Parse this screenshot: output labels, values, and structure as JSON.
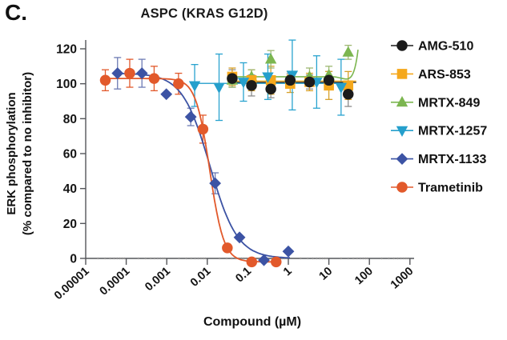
{
  "panel_label": "C.",
  "title": "ASPC (KRAS G12D)",
  "xlabel": "Compound (µM)",
  "ylabel_line1": "ERK phosphorylation",
  "ylabel_line2": "(% compared to no inhibitor)",
  "axes": {
    "x_ticks": [
      "0.00001",
      "0.0001",
      "0.001",
      "0.01",
      "0.1",
      "1",
      "10",
      "100",
      "1000"
    ],
    "x_log_min": -5,
    "x_log_max": 3,
    "y_ticks": [
      0,
      20,
      40,
      60,
      80,
      100,
      120
    ],
    "y_min": 0,
    "y_max": 120,
    "axis_color": "#54565a",
    "minor_tick_color": "#8e8e8e"
  },
  "chart_data": {
    "type": "scatter",
    "subtype": "dose-response curves, log x-axis",
    "title": "ASPC (KRAS G12D)",
    "xlabel": "Compound (µM)",
    "ylabel": "ERK phosphorylation (% compared to no inhibitor)",
    "xlim_log10": [
      -5,
      3
    ],
    "ylim": [
      0,
      120
    ],
    "series": [
      {
        "name": "AMG-510",
        "marker": "circle",
        "color": "#1b1b1b",
        "err_color": "#8c8c8c",
        "x": [
          0.0412,
          0.1235,
          0.37,
          1.111,
          3.333,
          10,
          30
        ],
        "y": [
          103,
          99,
          97,
          102,
          101,
          102,
          94
        ],
        "err": [
          5,
          6,
          5,
          4,
          4,
          5,
          7
        ],
        "fit": {
          "type": "flat",
          "level": 100.8
        }
      },
      {
        "name": "ARS-853",
        "marker": "square",
        "color": "#F5A81C",
        "err_color": "#d6a02a",
        "x": [
          0.0412,
          0.1235,
          0.37,
          1.111,
          3.333,
          10,
          30
        ],
        "y": [
          104,
          102,
          102,
          100,
          101,
          99,
          99
        ],
        "err": [
          5,
          6,
          8,
          5,
          5,
          8,
          8
        ],
        "fit": {
          "type": "flat",
          "level": 101.5
        }
      },
      {
        "name": "MRTX-849",
        "marker": "triangle-up",
        "color": "#7CB650",
        "err_color": "#9eb873",
        "x": [
          0.0412,
          0.1235,
          0.37,
          1.111,
          3.333,
          10,
          30
        ],
        "y": [
          102,
          104,
          114,
          103,
          104,
          105,
          118
        ],
        "err": [
          4,
          4,
          5,
          4,
          5,
          5,
          4
        ],
        "fit": {
          "type": "flat-rise",
          "level": 104,
          "rise_to": 119.5
        }
      },
      {
        "name": "MRTX-1257",
        "marker": "triangle-down",
        "color": "#259FCC",
        "err_color": "#29a3cf",
        "x": [
          0.00488,
          0.01953,
          0.07813,
          0.3125,
          1.25,
          5,
          20
        ],
        "y": [
          99,
          98,
          101,
          104,
          105,
          101,
          98
        ],
        "err": [
          12,
          19,
          11,
          13,
          20,
          15,
          16
        ],
        "fit": {
          "type": "flat",
          "level": 100.2
        }
      },
      {
        "name": "MRTX-1133",
        "marker": "diamond",
        "color": "#3C53A4",
        "err_color": "#6d7bb4",
        "x": [
          6.1e-05,
          0.000244,
          0.000977,
          0.00391,
          0.01563,
          0.0625,
          0.25,
          1
        ],
        "y": [
          106,
          106,
          94,
          81,
          43,
          12,
          -1,
          4
        ],
        "err": [
          9,
          8,
          0,
          5,
          6,
          0,
          0,
          0
        ],
        "fit": {
          "type": "sigmoid",
          "top": 106,
          "bottom": 0,
          "ic50": 0.0116,
          "hill": 1.28
        }
      },
      {
        "name": "Trametinib",
        "marker": "circle",
        "color": "#E2592B",
        "err_color": "#e2592b",
        "x": [
          3.05e-05,
          0.000122,
          0.000488,
          0.00195,
          0.00781,
          0.03125,
          0.125,
          0.5
        ],
        "y": [
          102,
          106,
          103,
          100,
          74,
          6,
          -2,
          -2
        ],
        "err": [
          6,
          8,
          7,
          6,
          8,
          0,
          0,
          0
        ],
        "fit": {
          "type": "sigmoid",
          "top": 103,
          "bottom": -2,
          "ic50": 0.0115,
          "hill": 2.5
        }
      }
    ],
    "legend_position": "right"
  }
}
